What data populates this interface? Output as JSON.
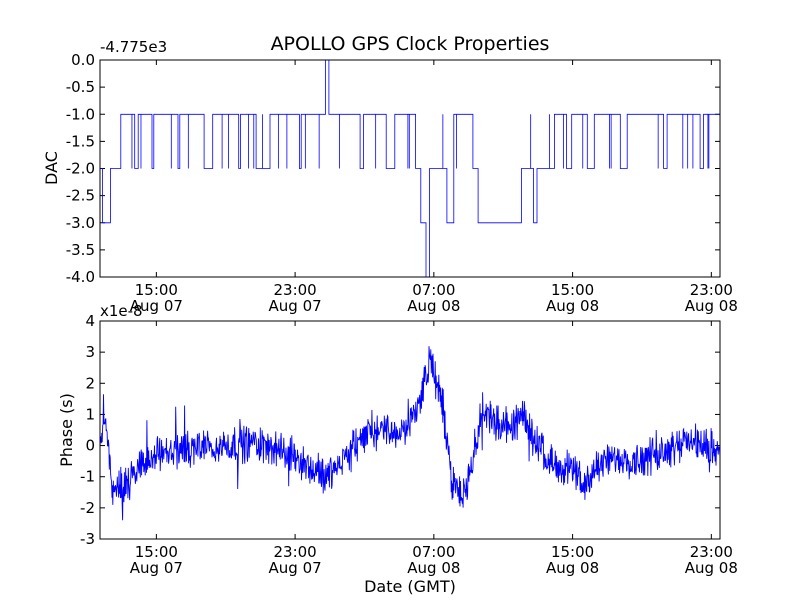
{
  "chart_data": {
    "title": "APOLLO GPS Clock Properties",
    "xlabel": "Date (GMT)",
    "x_ticks": [
      {
        "time": "15:00",
        "date": "Aug 07"
      },
      {
        "time": "23:00",
        "date": "Aug 07"
      },
      {
        "time": "07:00",
        "date": "Aug 08"
      },
      {
        "time": "15:00",
        "date": "Aug 08"
      },
      {
        "time": "23:00",
        "date": "Aug 08"
      }
    ],
    "x_range_hours": [
      "2012-08-07 11:45",
      "2012-08-08 23:30"
    ],
    "panels": [
      {
        "type": "line",
        "ylabel": "DAC",
        "offset_text": "-4.775e3",
        "ylim": [
          -4.0,
          0.0
        ],
        "yticks": [
          "0.0",
          "-0.5",
          "-1.0",
          "-1.5",
          "-2.0",
          "-2.5",
          "-3.0",
          "-3.5",
          "-4.0"
        ],
        "color": "#0000ff",
        "step_profile_hours_since_start": [
          [
            0.0,
            -2.0
          ],
          [
            0.15,
            -3.0
          ],
          [
            0.6,
            -2.0
          ],
          [
            1.2,
            -1.0
          ],
          [
            2.0,
            -2.0
          ],
          [
            2.2,
            -1.0
          ],
          [
            3.0,
            -2.0
          ],
          [
            3.1,
            -1.0
          ],
          [
            4.5,
            -2.0
          ],
          [
            4.6,
            -1.0
          ],
          [
            6.0,
            -2.0
          ],
          [
            6.5,
            -1.0
          ],
          [
            8.0,
            -2.0
          ],
          [
            8.1,
            -1.0
          ],
          [
            9.0,
            -2.0
          ],
          [
            9.8,
            -1.0
          ],
          [
            11.5,
            -2.0
          ],
          [
            11.6,
            -1.0
          ],
          [
            13.0,
            0.0
          ],
          [
            13.2,
            -1.0
          ],
          [
            15.0,
            -2.0
          ],
          [
            15.2,
            -1.0
          ],
          [
            16.5,
            -2.0
          ],
          [
            17.0,
            -1.0
          ],
          [
            18.2,
            -2.0
          ],
          [
            18.5,
            -3.0
          ],
          [
            18.8,
            -4.0
          ],
          [
            19.0,
            -2.0
          ],
          [
            20.0,
            -3.0
          ],
          [
            20.4,
            -1.0
          ],
          [
            21.5,
            -2.0
          ],
          [
            21.8,
            -3.0
          ],
          [
            24.3,
            -2.0
          ],
          [
            25.0,
            -3.0
          ],
          [
            25.2,
            -2.0
          ],
          [
            26.2,
            -1.0
          ],
          [
            26.9,
            -2.0
          ],
          [
            27.2,
            -1.0
          ],
          [
            28.1,
            -2.0
          ],
          [
            28.5,
            -1.0
          ],
          [
            30.0,
            -2.0
          ],
          [
            30.4,
            -1.0
          ],
          [
            32.5,
            -2.0
          ],
          [
            32.7,
            -1.0
          ],
          [
            34.6,
            -2.0
          ],
          [
            34.8,
            -1.0
          ],
          [
            35.75,
            -1.0
          ]
        ]
      },
      {
        "type": "line",
        "ylabel": "Phase (s)",
        "offset_text": "x1e-8",
        "ylim": [
          -3,
          4
        ],
        "yticks": [
          "4",
          "3",
          "2",
          "1",
          "0",
          "-1",
          "-2",
          "-3"
        ],
        "color": "#0000ff",
        "trend_hours_since_start": [
          [
            0.0,
            0.0
          ],
          [
            0.3,
            1.0
          ],
          [
            0.7,
            -1.3
          ],
          [
            1.5,
            -1.2
          ],
          [
            3.0,
            -0.3
          ],
          [
            5.0,
            -0.1
          ],
          [
            7.0,
            0.0
          ],
          [
            9.0,
            0.1
          ],
          [
            11.0,
            -0.3
          ],
          [
            13.0,
            -1.0
          ],
          [
            14.0,
            -0.5
          ],
          [
            15.5,
            0.5
          ],
          [
            17.5,
            0.4
          ],
          [
            18.5,
            1.5
          ],
          [
            19.0,
            2.8
          ],
          [
            19.8,
            1.2
          ],
          [
            20.3,
            -1.2
          ],
          [
            20.9,
            -1.7
          ],
          [
            21.5,
            -0.5
          ],
          [
            22.0,
            1.2
          ],
          [
            22.8,
            0.8
          ],
          [
            23.5,
            0.5
          ],
          [
            24.3,
            0.9
          ],
          [
            25.0,
            0.3
          ],
          [
            26.0,
            -0.5
          ],
          [
            27.0,
            -0.7
          ],
          [
            27.5,
            -1.0
          ],
          [
            28.0,
            -1.2
          ],
          [
            29.0,
            -0.5
          ],
          [
            30.5,
            -0.5
          ],
          [
            32.0,
            -0.3
          ],
          [
            33.0,
            0.0
          ],
          [
            34.0,
            0.2
          ],
          [
            35.0,
            -0.1
          ],
          [
            35.75,
            0.0
          ]
        ]
      }
    ]
  }
}
